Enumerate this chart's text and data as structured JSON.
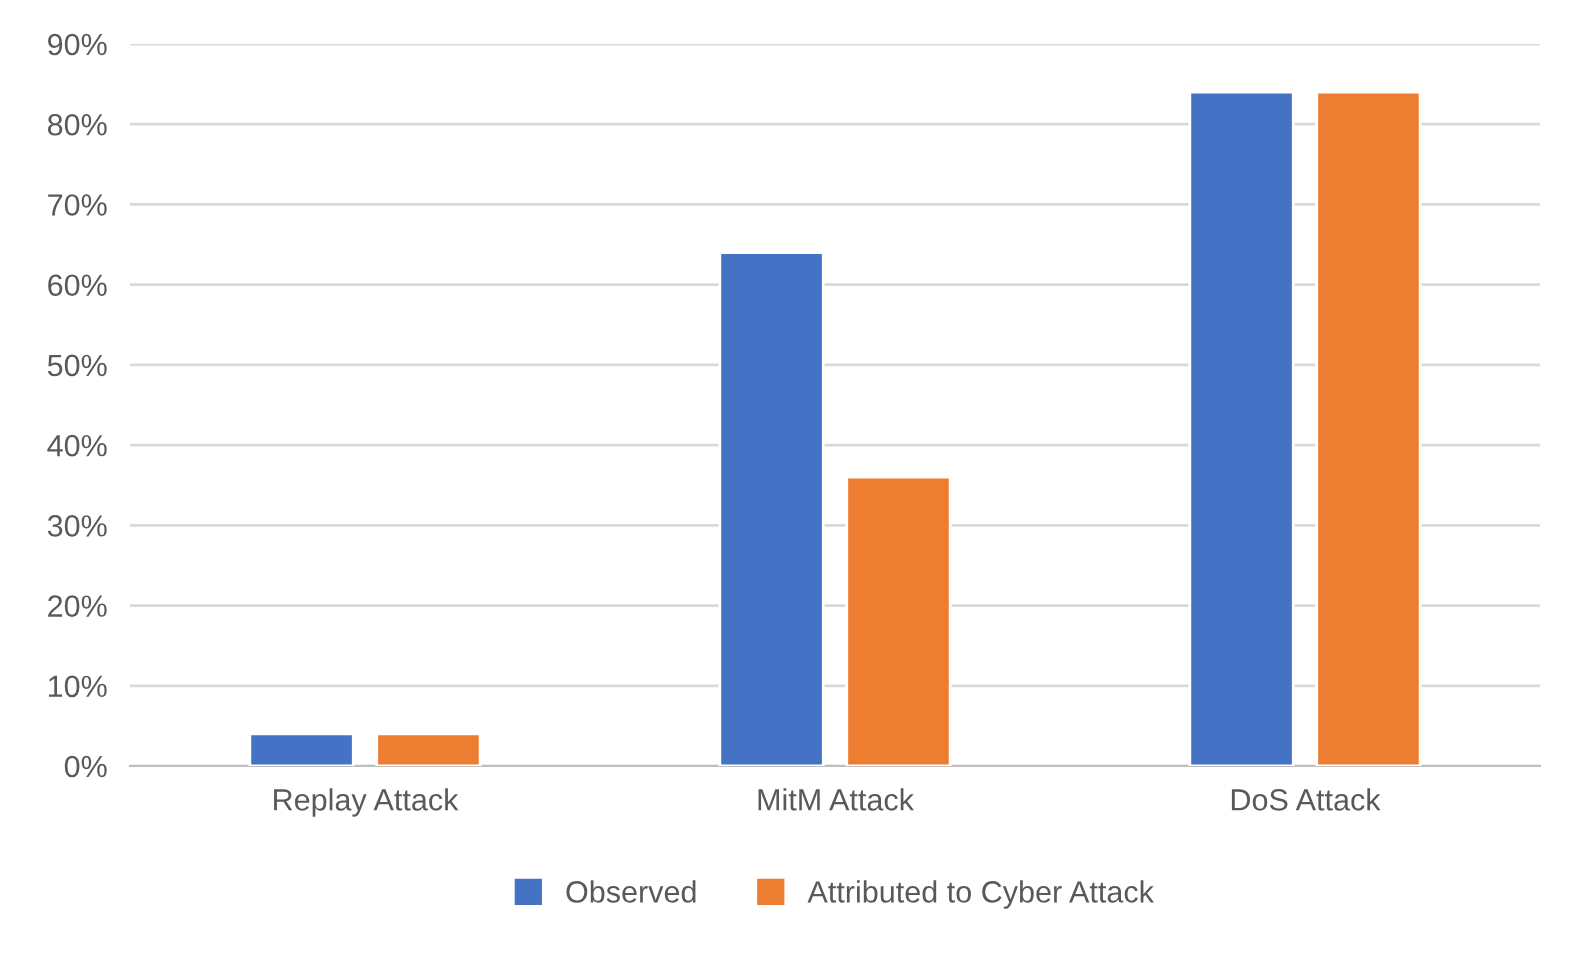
{
  "chart_data": {
    "type": "bar",
    "categories": [
      "Replay Attack",
      "MitM Attack",
      "DoS Attack"
    ],
    "series": [
      {
        "name": "Observed",
        "color": "#4472c4",
        "values": [
          4,
          64,
          84
        ]
      },
      {
        "name": "Attributed to Cyber Attack",
        "color": "#ed7d31",
        "values": [
          4,
          36,
          84
        ]
      }
    ],
    "ylim": [
      0,
      90
    ],
    "yticks": [
      {
        "value": 0,
        "label": "0%"
      },
      {
        "value": 10,
        "label": "10%"
      },
      {
        "value": 20,
        "label": "20%"
      },
      {
        "value": 30,
        "label": "30%"
      },
      {
        "value": 40,
        "label": "40%"
      },
      {
        "value": 50,
        "label": "50%"
      },
      {
        "value": 60,
        "label": "60%"
      },
      {
        "value": 70,
        "label": "70%"
      },
      {
        "value": 80,
        "label": "80%"
      },
      {
        "value": 90,
        "label": "90%"
      }
    ],
    "grid": "y",
    "legend": "bottom"
  }
}
